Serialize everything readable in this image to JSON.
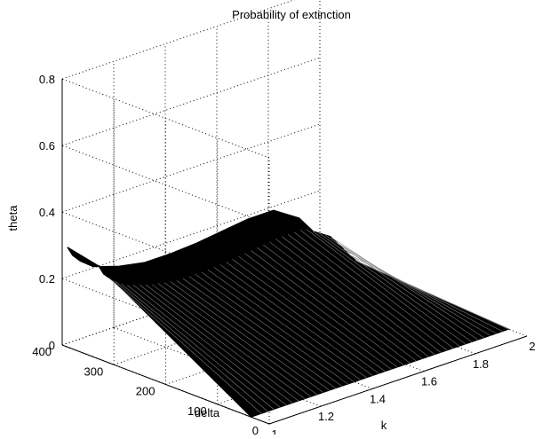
{
  "chart_data": {
    "type": "surface",
    "title": "Probability of extinction",
    "xlabel": "k",
    "ylabel": "delta",
    "zlabel": "theta",
    "xlim": [
      1,
      2
    ],
    "ylim": [
      0,
      400
    ],
    "zlim": [
      0,
      0.8
    ],
    "x_ticks": [
      "1",
      "1.2",
      "1.4",
      "1.6",
      "1.8",
      "2"
    ],
    "y_ticks": [
      "0",
      "100",
      "200",
      "300",
      "400"
    ],
    "z_ticks": [
      "0",
      "0.2",
      "0.4",
      "0.6",
      "0.8"
    ],
    "grid": true,
    "colors": {
      "surface": "#000000",
      "grid": "#000000",
      "background": "#ffffff"
    },
    "surface_profile": {
      "k": [
        1.0,
        1.02,
        1.05,
        1.1,
        1.2,
        1.3,
        1.4,
        1.5,
        1.6,
        1.7,
        1.8,
        1.9,
        2.0
      ],
      "theta_at_delta_400": [
        0.3,
        0.27,
        0.245,
        0.215,
        0.19,
        0.175,
        0.175,
        0.18,
        0.19,
        0.2,
        0.2,
        0.15,
        0.05
      ],
      "theta_near_delta_0": [
        0.0,
        0.0,
        0.0,
        0.0,
        0.0,
        0.0,
        0.0,
        0.0,
        0.0,
        0.0,
        0.0,
        0.0,
        0.0
      ]
    }
  }
}
